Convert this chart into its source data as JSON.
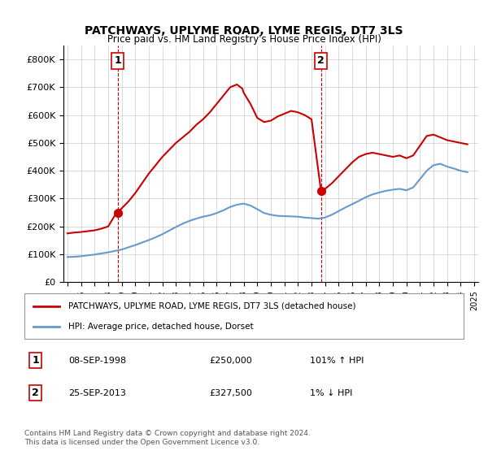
{
  "title": "PATCHWAYS, UPLYME ROAD, LYME REGIS, DT7 3LS",
  "subtitle": "Price paid vs. HM Land Registry's House Price Index (HPI)",
  "legend_line1": "PATCHWAYS, UPLYME ROAD, LYME REGIS, DT7 3LS (detached house)",
  "legend_line2": "HPI: Average price, detached house, Dorset",
  "footnote": "Contains HM Land Registry data © Crown copyright and database right 2024.\nThis data is licensed under the Open Government Licence v3.0.",
  "sale1_label": "1",
  "sale1_date": "08-SEP-1998",
  "sale1_price": "£250,000",
  "sale1_hpi": "101% ↑ HPI",
  "sale2_label": "2",
  "sale2_date": "25-SEP-2013",
  "sale2_price": "£327,500",
  "sale2_hpi": "1% ↓ HPI",
  "red_line_color": "#cc0000",
  "blue_line_color": "#6699cc",
  "background_color": "#ffffff",
  "grid_color": "#cccccc",
  "ylim": [
    0,
    850000
  ],
  "yticks": [
    0,
    100000,
    200000,
    300000,
    400000,
    500000,
    600000,
    700000,
    800000
  ],
  "ytick_labels": [
    "£0",
    "£100K",
    "£200K",
    "£300K",
    "£400K",
    "£500K",
    "£600K",
    "£700K",
    "£800K"
  ],
  "xmin_year": 1995,
  "xmax_year": 2025,
  "xtick_years": [
    1995,
    1996,
    1997,
    1998,
    1999,
    2000,
    2001,
    2002,
    2003,
    2004,
    2005,
    2006,
    2007,
    2008,
    2009,
    2010,
    2011,
    2012,
    2013,
    2014,
    2015,
    2016,
    2017,
    2018,
    2019,
    2020,
    2021,
    2022,
    2023,
    2024,
    2025
  ],
  "sale1_x": 1998.7,
  "sale1_y": 250000,
  "sale2_x": 2013.7,
  "sale2_y": 327500,
  "red_x": [
    1995.0,
    1995.5,
    1996.0,
    1996.5,
    1997.0,
    1997.5,
    1998.0,
    1998.5,
    1998.7,
    1999.0,
    1999.5,
    2000.0,
    2000.5,
    2001.0,
    2001.5,
    2002.0,
    2002.5,
    2003.0,
    2003.5,
    2004.0,
    2004.5,
    2005.0,
    2005.5,
    2006.0,
    2006.5,
    2007.0,
    2007.5,
    2007.9,
    2008.0,
    2008.5,
    2009.0,
    2009.5,
    2010.0,
    2010.5,
    2011.0,
    2011.5,
    2012.0,
    2012.5,
    2013.0,
    2013.7,
    2013.9,
    2014.0,
    2014.5,
    2015.0,
    2015.5,
    2016.0,
    2016.5,
    2017.0,
    2017.5,
    2018.0,
    2018.5,
    2019.0,
    2019.5,
    2020.0,
    2020.5,
    2021.0,
    2021.5,
    2022.0,
    2022.5,
    2023.0,
    2023.5,
    2024.0,
    2024.5
  ],
  "red_y": [
    175000,
    178000,
    180000,
    183000,
    186000,
    192000,
    200000,
    240000,
    250000,
    265000,
    290000,
    320000,
    355000,
    390000,
    420000,
    450000,
    475000,
    500000,
    520000,
    540000,
    565000,
    585000,
    610000,
    640000,
    670000,
    700000,
    710000,
    695000,
    680000,
    640000,
    590000,
    575000,
    580000,
    595000,
    605000,
    615000,
    610000,
    600000,
    585000,
    327500,
    330000,
    335000,
    355000,
    380000,
    405000,
    430000,
    450000,
    460000,
    465000,
    460000,
    455000,
    450000,
    455000,
    445000,
    455000,
    490000,
    525000,
    530000,
    520000,
    510000,
    505000,
    500000,
    495000
  ],
  "blue_x": [
    1995.0,
    1995.5,
    1996.0,
    1996.5,
    1997.0,
    1997.5,
    1998.0,
    1998.5,
    1999.0,
    1999.5,
    2000.0,
    2000.5,
    2001.0,
    2001.5,
    2002.0,
    2002.5,
    2003.0,
    2003.5,
    2004.0,
    2004.5,
    2005.0,
    2005.5,
    2006.0,
    2006.5,
    2007.0,
    2007.5,
    2008.0,
    2008.5,
    2009.0,
    2009.5,
    2010.0,
    2010.5,
    2011.0,
    2011.5,
    2012.0,
    2012.5,
    2013.0,
    2013.5,
    2014.0,
    2014.5,
    2015.0,
    2015.5,
    2016.0,
    2016.5,
    2017.0,
    2017.5,
    2018.0,
    2018.5,
    2019.0,
    2019.5,
    2020.0,
    2020.5,
    2021.0,
    2021.5,
    2022.0,
    2022.5,
    2023.0,
    2023.5,
    2024.0,
    2024.5
  ],
  "blue_y": [
    90000,
    91000,
    93000,
    96000,
    99000,
    103000,
    107000,
    112000,
    117000,
    125000,
    133000,
    142000,
    151000,
    161000,
    172000,
    185000,
    198000,
    210000,
    220000,
    228000,
    235000,
    240000,
    248000,
    258000,
    270000,
    278000,
    282000,
    275000,
    262000,
    248000,
    242000,
    238000,
    237000,
    236000,
    235000,
    232000,
    230000,
    228000,
    232000,
    242000,
    255000,
    268000,
    280000,
    292000,
    305000,
    315000,
    322000,
    328000,
    332000,
    335000,
    330000,
    340000,
    370000,
    400000,
    420000,
    425000,
    415000,
    408000,
    400000,
    395000
  ]
}
